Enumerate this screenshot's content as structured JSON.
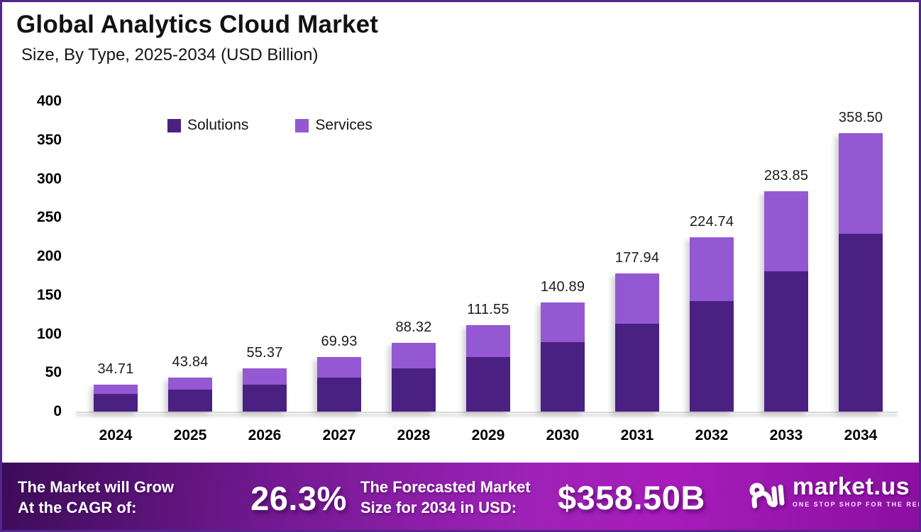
{
  "header": {
    "title": "Global Analytics Cloud Market",
    "subtitle": "Size, By Type, 2025-2034 (USD Billion)"
  },
  "chart_data": {
    "type": "bar",
    "stacked": true,
    "title": "Global Analytics Cloud Market",
    "subtitle": "Size, By Type, 2025-2034 (USD Billion)",
    "xlabel": "",
    "ylabel": "",
    "ylim": [
      0,
      400
    ],
    "yticks": [
      0,
      50,
      100,
      150,
      200,
      250,
      300,
      350,
      400
    ],
    "grid": false,
    "legend_position": "top",
    "categories": [
      "2024",
      "2025",
      "2026",
      "2027",
      "2028",
      "2029",
      "2030",
      "2031",
      "2032",
      "2033",
      "2034"
    ],
    "series": [
      {
        "name": "Solutions",
        "color": "#4B2083",
        "values": [
          22.8,
          27.9,
          35.0,
          43.5,
          56.0,
          70.6,
          89.8,
          113.5,
          142.5,
          180.8,
          228.9
        ]
      },
      {
        "name": "Services",
        "color": "#9458D2",
        "values": [
          11.9,
          15.9,
          20.4,
          26.4,
          32.3,
          40.9,
          51.1,
          64.4,
          82.2,
          103.0,
          129.6
        ]
      }
    ],
    "totals": [
      "34.71",
      "43.84",
      "55.37",
      "69.93",
      "88.32",
      "111.55",
      "140.89",
      "177.94",
      "224.74",
      "283.85",
      "358.50"
    ]
  },
  "banner": {
    "cagr_label_line1": "The Market will Grow",
    "cagr_label_line2": "At the CAGR of:",
    "cagr_value": "26.3%",
    "forecast_label_line1": "The Forecasted Market",
    "forecast_label_line2": "Size for 2034 in USD:",
    "forecast_value": "$358.50B",
    "logo_text": "market.us",
    "logo_tagline": "ONE STOP SHOP FOR THE REPORTS"
  },
  "colors": {
    "solutions": "#4B2083",
    "services": "#9458D2",
    "frame_border": "#54258c",
    "baseline": "#dadada",
    "banner_gradient_left": "#3c0c58",
    "banner_gradient_mid": "#9f22b8",
    "banner_gradient_right": "#8a0fa0",
    "value_label_text": "#1b1b1b"
  }
}
